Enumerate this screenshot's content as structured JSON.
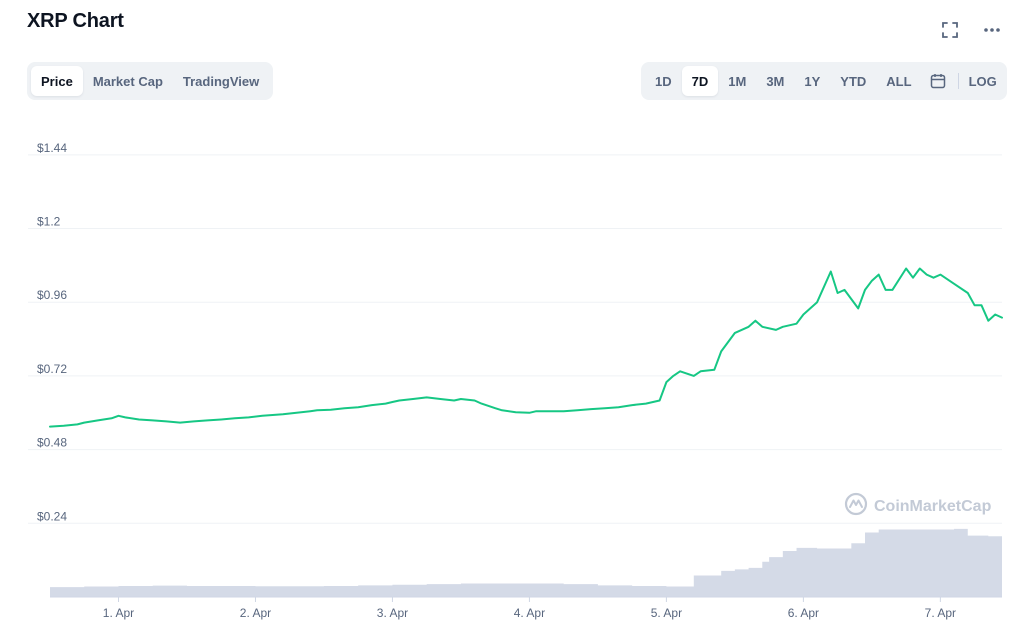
{
  "header": {
    "title": "XRP Chart",
    "fullscreen_icon": "fullscreen-icon",
    "more_icon": "more-horizontal-icon"
  },
  "view_tabs": [
    {
      "label": "Price",
      "active": true
    },
    {
      "label": "Market Cap",
      "active": false
    },
    {
      "label": "TradingView",
      "active": false
    }
  ],
  "range_tabs": [
    {
      "label": "1D",
      "active": false
    },
    {
      "label": "7D",
      "active": true
    },
    {
      "label": "1M",
      "active": false
    },
    {
      "label": "3M",
      "active": false
    },
    {
      "label": "1Y",
      "active": false
    },
    {
      "label": "YTD",
      "active": false
    },
    {
      "label": "ALL",
      "active": false
    }
  ],
  "calendar_icon": "calendar-icon",
  "log_label": "LOG",
  "watermark": {
    "text": "CoinMarketCap",
    "icon": "coinmarketcap-logo-icon"
  },
  "colors": {
    "price_line": "#16c784",
    "volume_fill": "#cfd6e4",
    "gridline": "#eff2f5",
    "axis_text": "#58667e",
    "title_text": "#0d1421"
  },
  "chart_data": {
    "type": "line",
    "title": "XRP Chart",
    "xlabel": "",
    "ylabel": "",
    "x_unit": "days",
    "x_tick_labels": [
      "1. Apr",
      "2. Apr",
      "3. Apr",
      "4. Apr",
      "5. Apr",
      "6. Apr",
      "7. Apr"
    ],
    "x_tick_values": [
      1,
      2,
      3,
      4,
      5,
      6,
      7
    ],
    "xlim": [
      0.5,
      7.45
    ],
    "y_tick_labels": [
      "$0.24",
      "$0.48",
      "$0.72",
      "$0.96",
      "$1.2",
      "$1.44"
    ],
    "y_tick_values": [
      0.24,
      0.48,
      0.72,
      0.96,
      1.2,
      1.44
    ],
    "ylim": [
      0.0,
      1.56
    ],
    "grid": true,
    "legend": "none",
    "series": [
      {
        "kind": "price",
        "x": [
          0.5,
          0.6,
          0.7,
          0.75,
          0.85,
          0.95,
          1.0,
          1.05,
          1.15,
          1.25,
          1.35,
          1.45,
          1.55,
          1.65,
          1.75,
          1.85,
          1.95,
          2.05,
          2.1,
          2.2,
          2.3,
          2.4,
          2.45,
          2.55,
          2.65,
          2.75,
          2.85,
          2.95,
          3.0,
          3.05,
          3.15,
          3.25,
          3.35,
          3.45,
          3.5,
          3.6,
          3.65,
          3.75,
          3.8,
          3.9,
          4.0,
          4.05,
          4.15,
          4.25,
          4.35,
          4.45,
          4.55,
          4.65,
          4.75,
          4.85,
          4.95,
          5.0,
          5.05,
          5.1,
          5.2,
          5.25,
          5.35,
          5.4,
          5.5,
          5.6,
          5.65,
          5.7,
          5.8,
          5.85,
          5.95,
          6.0,
          6.1,
          6.2,
          6.25,
          6.3,
          6.4,
          6.45,
          6.5,
          6.55,
          6.6,
          6.65,
          6.75,
          6.8,
          6.85,
          6.9,
          6.95,
          7.0,
          7.1,
          7.2,
          7.25,
          7.3,
          7.35,
          7.4,
          7.45
        ],
        "y": [
          0.555,
          0.558,
          0.562,
          0.568,
          0.575,
          0.582,
          0.59,
          0.585,
          0.578,
          0.575,
          0.572,
          0.568,
          0.572,
          0.575,
          0.578,
          0.582,
          0.585,
          0.59,
          0.592,
          0.595,
          0.6,
          0.605,
          0.608,
          0.61,
          0.615,
          0.618,
          0.625,
          0.63,
          0.635,
          0.64,
          0.645,
          0.65,
          0.645,
          0.64,
          0.645,
          0.64,
          0.63,
          0.615,
          0.608,
          0.602,
          0.6,
          0.605,
          0.605,
          0.605,
          0.608,
          0.612,
          0.615,
          0.618,
          0.625,
          0.63,
          0.64,
          0.7,
          0.72,
          0.735,
          0.72,
          0.735,
          0.74,
          0.8,
          0.86,
          0.88,
          0.9,
          0.88,
          0.87,
          0.88,
          0.89,
          0.92,
          0.96,
          1.06,
          0.99,
          1.0,
          0.94,
          1.0,
          1.03,
          1.05,
          1.0,
          1.0,
          1.07,
          1.04,
          1.07,
          1.05,
          1.04,
          1.05,
          1.02,
          0.99,
          0.95,
          0.95,
          0.9,
          0.92,
          0.91
        ]
      },
      {
        "kind": "volume",
        "x": [
          0.5,
          0.75,
          1.0,
          1.25,
          1.5,
          1.75,
          2.0,
          2.25,
          2.5,
          2.75,
          3.0,
          3.25,
          3.5,
          3.75,
          4.0,
          4.25,
          4.5,
          4.75,
          5.0,
          5.2,
          5.4,
          5.5,
          5.6,
          5.7,
          5.75,
          5.85,
          5.95,
          6.1,
          6.2,
          6.3,
          6.35,
          6.45,
          6.55,
          6.7,
          6.9,
          7.1,
          7.2,
          7.35,
          7.45
        ],
        "y": [
          0.032,
          0.034,
          0.036,
          0.037,
          0.036,
          0.036,
          0.035,
          0.035,
          0.036,
          0.038,
          0.04,
          0.042,
          0.044,
          0.044,
          0.044,
          0.042,
          0.038,
          0.036,
          0.034,
          0.07,
          0.085,
          0.09,
          0.095,
          0.115,
          0.13,
          0.15,
          0.16,
          0.158,
          0.158,
          0.158,
          0.175,
          0.21,
          0.22,
          0.22,
          0.22,
          0.222,
          0.2,
          0.198,
          0.185
        ]
      }
    ]
  }
}
